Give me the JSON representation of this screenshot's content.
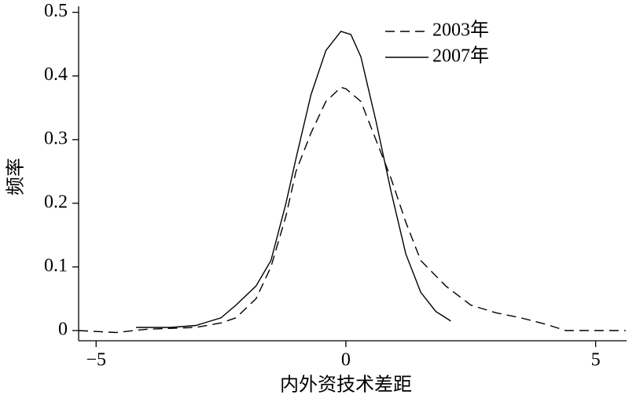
{
  "chart_data": {
    "type": "line",
    "x_label": "内外资技术差距",
    "y_label": "频率",
    "xlim": [
      -5.35,
      5.62
    ],
    "ylim": [
      -0.016,
      0.507
    ],
    "xticks": [
      {
        "value": -5,
        "label": "−5"
      },
      0,
      5
    ],
    "yticks": [
      0,
      0.1,
      0.2,
      0.3,
      0.4,
      0.5
    ],
    "legend": "top-right",
    "series": [
      {
        "name": "2003年",
        "color": "#000000",
        "dash": true,
        "x": [
          -5.35,
          -4.6,
          -4.0,
          -3.0,
          -2.5,
          -2.2,
          -1.8,
          -1.5,
          -1.2,
          -1.0,
          -0.7,
          -0.4,
          -0.1,
          0,
          0.3,
          0.6,
          0.9,
          1.2,
          1.5,
          2.0,
          2.5,
          3.0,
          3.5,
          4.0,
          4.4,
          5.0,
          5.6
        ],
        "values": [
          0,
          -0.003,
          0.002,
          0.005,
          0.012,
          0.02,
          0.05,
          0.1,
          0.18,
          0.25,
          0.31,
          0.36,
          0.382,
          0.38,
          0.36,
          0.3,
          0.24,
          0.17,
          0.11,
          0.07,
          0.04,
          0.028,
          0.02,
          0.01,
          0,
          0,
          0
        ]
      },
      {
        "name": "2007年",
        "color": "#000000",
        "dash": false,
        "x": [
          -4.2,
          -3.5,
          -3.0,
          -2.5,
          -2.2,
          -1.8,
          -1.5,
          -1.2,
          -1.0,
          -0.7,
          -0.4,
          -0.1,
          0.1,
          0.3,
          0.6,
          0.9,
          1.2,
          1.5,
          1.8,
          2.1
        ],
        "values": [
          0.005,
          0.005,
          0.008,
          0.02,
          0.04,
          0.07,
          0.11,
          0.2,
          0.27,
          0.37,
          0.44,
          0.47,
          0.465,
          0.43,
          0.33,
          0.22,
          0.12,
          0.06,
          0.03,
          0.015
        ]
      }
    ]
  }
}
